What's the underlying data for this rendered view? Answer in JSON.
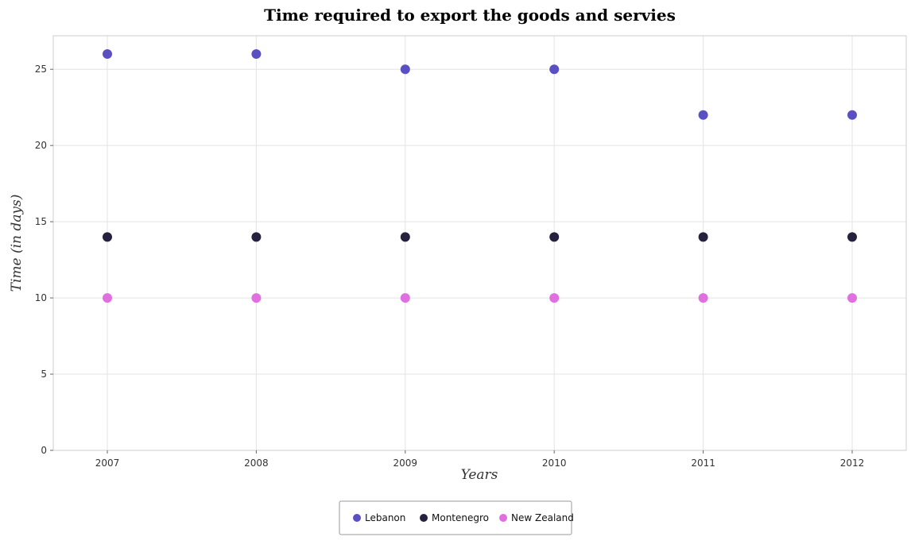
{
  "chart_data": {
    "type": "scatter",
    "title": "Time required to export the goods and servies",
    "xlabel": "Years",
    "ylabel": "Time (in days)",
    "categories": [
      "2007",
      "2008",
      "2009",
      "2010",
      "2011",
      "2012"
    ],
    "ylim": [
      0,
      27.2
    ],
    "yticks": [
      0,
      5,
      10,
      15,
      20,
      25
    ],
    "grid": true,
    "legend_position": "bottom-center",
    "series": [
      {
        "name": "Lebanon",
        "color": "#5b4fc4",
        "values": [
          26,
          26,
          25,
          25,
          22,
          22
        ]
      },
      {
        "name": "Montenegro",
        "color": "#26213f",
        "values": [
          14,
          14,
          14,
          14,
          14,
          14
        ]
      },
      {
        "name": "New Zealand",
        "color": "#e070e0",
        "values": [
          10,
          10,
          10,
          10,
          10,
          10
        ]
      }
    ]
  }
}
